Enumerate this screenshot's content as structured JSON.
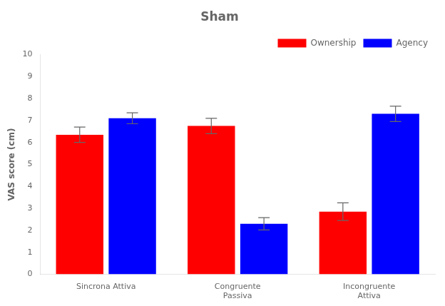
{
  "chart_data": {
    "type": "bar",
    "title": "Sham",
    "ylabel": "VAS score (cm)",
    "categories": [
      "Sincrona Attiva",
      "Congruente\nPassiva",
      "Incongruente\nAttiva"
    ],
    "series": [
      {
        "name": "Ownership",
        "color": "#ff0000",
        "values": [
          6.35,
          6.75,
          2.85
        ],
        "errors": [
          0.35,
          0.35,
          0.4
        ]
      },
      {
        "name": "Agency",
        "color": "#0000ff",
        "values": [
          7.1,
          2.3,
          7.3
        ],
        "errors": [
          0.25,
          0.28,
          0.35
        ]
      }
    ],
    "ylim": [
      0,
      10
    ],
    "yticks": [
      0,
      1,
      2,
      3,
      4,
      5,
      6,
      7,
      8,
      9,
      10
    ],
    "grid": false,
    "legend": "upper right"
  }
}
